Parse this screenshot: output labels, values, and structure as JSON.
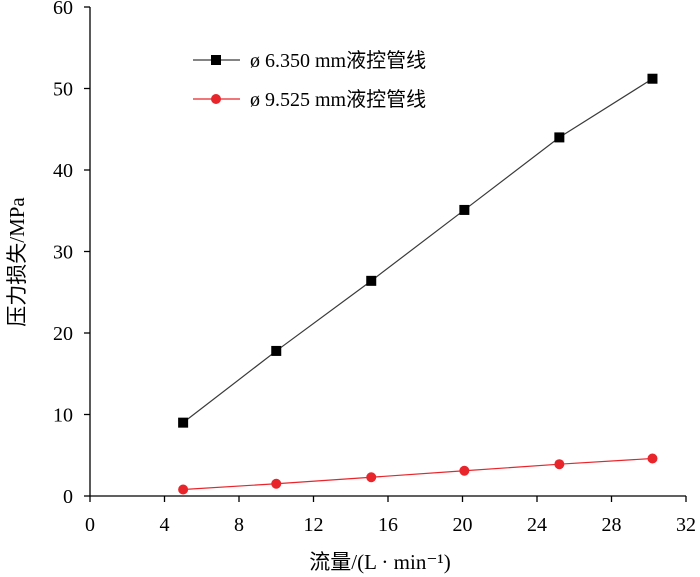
{
  "chart_data": {
    "type": "line",
    "xlabel": "流量/(L · min⁻¹)",
    "ylabel": "压力损失/MPa",
    "xlim": [
      0,
      32
    ],
    "ylim": [
      0,
      60
    ],
    "xticks": [
      0,
      4,
      8,
      12,
      16,
      20,
      24,
      28,
      32
    ],
    "yticks": [
      0,
      10,
      20,
      30,
      40,
      50,
      60
    ],
    "grid": false,
    "legend_position": "top-left",
    "series": [
      {
        "name": "ø 6.350 mm液控管线",
        "marker": "square",
        "marker_color": "#000000",
        "line_color": "#3a3a3a",
        "x": [
          5.0,
          10.0,
          15.1,
          20.1,
          25.2,
          30.2
        ],
        "y": [
          9.0,
          17.8,
          26.4,
          35.1,
          44.0,
          51.2
        ]
      },
      {
        "name": "ø 9.525 mm液控管线",
        "marker": "circle",
        "marker_color": "#e8252b",
        "line_color": "#e8252b",
        "x": [
          5.0,
          10.0,
          15.1,
          20.1,
          25.2,
          30.2
        ],
        "y": [
          0.8,
          1.5,
          2.3,
          3.1,
          3.9,
          4.6
        ]
      }
    ]
  }
}
